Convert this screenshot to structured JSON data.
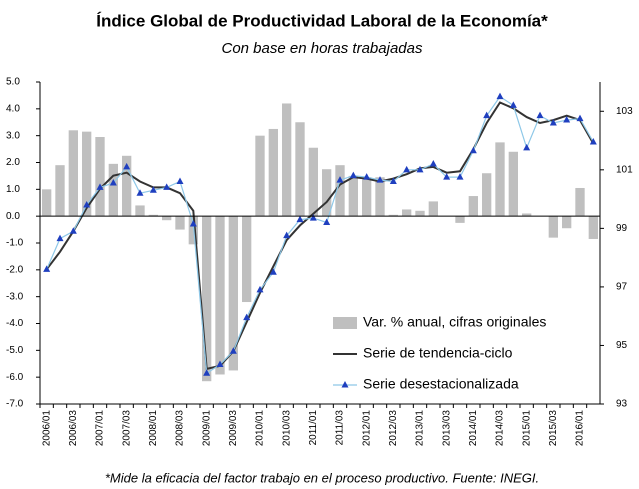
{
  "chart_data": {
    "type": "combo",
    "title": "Índice Global de Productividad Laboral de la Economía*",
    "subtitle": "Con base en horas trabajadas",
    "footnote": "*Mide la eficacia del factor trabajo en el proceso productivo. Fuente: INEGI.",
    "categories": [
      "2006/01",
      null,
      "2006/03",
      null,
      "2007/01",
      null,
      "2007/03",
      null,
      "2008/01",
      null,
      "2008/03",
      null,
      "2009/01",
      null,
      "2009/03",
      null,
      "2010/01",
      null,
      "2010/03",
      null,
      "2011/01",
      null,
      "2011/03",
      null,
      "2012/01",
      null,
      "2012/03",
      null,
      "2013/01",
      null,
      "2013/03",
      null,
      "2014/01",
      null,
      "2014/03",
      null,
      "2015/01",
      null,
      "2015/03",
      null,
      "2016/01",
      null
    ],
    "series": [
      {
        "name": "Var. % anual, cifras originales",
        "type": "bar",
        "color": "#bfbfbf",
        "axis": "y",
        "values": [
          1.0,
          1.9,
          3.2,
          3.15,
          2.95,
          1.95,
          2.25,
          0.4,
          0.05,
          -0.15,
          -0.5,
          -1.05,
          -6.15,
          -5.9,
          -5.75,
          -3.2,
          3.0,
          3.25,
          4.2,
          3.5,
          2.55,
          1.75,
          1.9,
          1.5,
          1.45,
          1.45,
          0.05,
          0.25,
          0.2,
          0.55,
          0.0,
          -0.25,
          0.75,
          1.6,
          2.75,
          2.4,
          0.1,
          0.0,
          -0.8,
          -0.45,
          1.05,
          -0.85
        ]
      },
      {
        "name": "Serie de tendencia-ciclo",
        "type": "line",
        "color": "#333333",
        "axis": "y2",
        "values": [
          97.6,
          98.2,
          98.9,
          99.7,
          100.35,
          100.8,
          100.9,
          100.6,
          100.4,
          100.4,
          100.2,
          99.6,
          94.2,
          94.3,
          94.8,
          95.8,
          96.8,
          97.7,
          98.6,
          99.1,
          99.5,
          99.9,
          100.5,
          100.75,
          100.7,
          100.6,
          100.7,
          100.85,
          101.05,
          101.1,
          100.9,
          100.95,
          101.7,
          102.6,
          103.3,
          103.1,
          102.8,
          102.6,
          102.7,
          102.85,
          102.7,
          101.9
        ]
      },
      {
        "name": "Serie desestacionalizada",
        "type": "line",
        "color": "#8ec8e8",
        "marker": "triangle",
        "marker_color": "#1f3fbf",
        "axis": "y2",
        "values": [
          97.6,
          98.65,
          98.9,
          99.8,
          100.4,
          100.55,
          101.1,
          100.2,
          100.3,
          100.4,
          100.6,
          99.15,
          94.05,
          94.35,
          94.8,
          95.95,
          96.9,
          97.5,
          98.75,
          99.3,
          99.35,
          99.2,
          100.65,
          100.8,
          100.75,
          100.65,
          100.6,
          101.0,
          101.0,
          101.2,
          100.75,
          100.75,
          101.65,
          102.85,
          103.5,
          103.2,
          101.75,
          102.85,
          102.6,
          102.7,
          102.75,
          101.95
        ]
      }
    ],
    "ylim": [
      -7,
      5
    ],
    "yticks": [
      {
        "value": 5,
        "label": "5.0"
      },
      {
        "value": 4,
        "label": "4.0"
      },
      {
        "value": 3,
        "label": "3.0"
      },
      {
        "value": 2,
        "label": "2.0"
      },
      {
        "value": 1,
        "label": "1.0"
      },
      {
        "value": 0,
        "label": "0.0"
      },
      {
        "value": -1,
        "label": "-1.0"
      },
      {
        "value": -2,
        "label": "-2.0"
      },
      {
        "value": -3,
        "label": "-3.0"
      },
      {
        "value": -4,
        "label": "-4.0"
      },
      {
        "value": -5,
        "label": "-5.0"
      },
      {
        "value": -6,
        "label": "-6.0"
      },
      {
        "value": -7,
        "label": "-7.0"
      }
    ],
    "y2lim": [
      93,
      104
    ],
    "y2ticks": [
      93,
      95,
      97,
      99,
      101,
      103
    ],
    "legend": "lower right",
    "grid": false
  }
}
